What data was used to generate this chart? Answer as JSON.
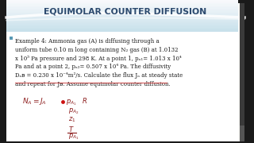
{
  "title": "EQUIMOLAR COUNTER DIFFUSION",
  "title_color": "#2c4a6e",
  "bg_color": "#1a1a1a",
  "slide_bg": "#f8f8f6",
  "header_gradient_top": "#a8d8ea",
  "header_gradient_bottom": "#e8f4f8",
  "bullet_color": "#4a90a4",
  "text_color": "#1a1a1a",
  "handwrite_color": "#8B1a1a",
  "underline_color": "#cc3333",
  "right_sidebar_color": "#555555",
  "lines": [
    "Example 4: Ammonia gas (A) is diffusing through a",
    "uniform tube 0.10 m long containing N₂ gas (B) at 1.0132",
    "x 10⁵ Pa pressure and 298 K. At a point 1, pₐ₁= 1.013 x 10⁴",
    "Pa and at a point 2, pₐ₂= 0.507 x 10⁴ Pa. The diffusivity",
    "Dₐᴃ = 0.230 x 10⁻⁴m²/s. Calculate the flux Jₐ at steady state",
    "and repeat for Jᴃ. Assume equimolar counter diffusion."
  ],
  "hw_eq": "Nₐ = Jₐ",
  "hw_items": [
    "pₐ₁   R",
    "pₐ₂",
    "z₁",
    "T",
    "pₐ₁"
  ]
}
